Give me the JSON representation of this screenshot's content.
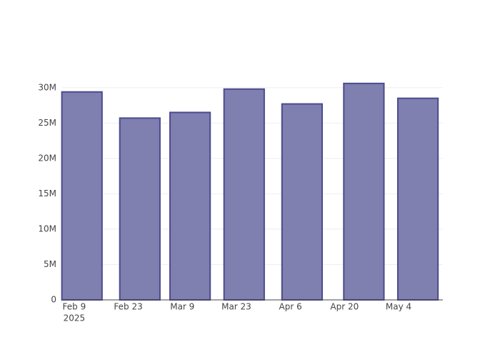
{
  "chart_data": {
    "type": "bar",
    "x": [
      "2025-02-11",
      "2025-02-26",
      "2025-03-11",
      "2025-03-25",
      "2025-04-09",
      "2025-04-25",
      "2025-05-09"
    ],
    "values": [
      29400000,
      25700000,
      26500000,
      29800000,
      27700000,
      30600000,
      28500000
    ],
    "color": "#7f7fb0",
    "edge_color": "#4b4b8f",
    "xlim": [
      "2025-02-05T21:00",
      "2025-05-15T11:00"
    ],
    "xticks": [
      {
        "value": "2025-02-09",
        "label": "Feb 9"
      },
      {
        "value": "2025-02-23",
        "label": "Feb 23"
      },
      {
        "value": "2025-03-09",
        "label": "Mar 9"
      },
      {
        "value": "2025-03-23",
        "label": "Mar 23"
      },
      {
        "value": "2025-04-06",
        "label": "Apr 6"
      },
      {
        "value": "2025-04-20",
        "label": "Apr 20"
      },
      {
        "value": "2025-05-04",
        "label": "May 4"
      }
    ],
    "x_year_label": "2025",
    "ylim": [
      0,
      32300000
    ],
    "yticks": [
      0,
      {
        "value": 5000000,
        "label": "5M"
      },
      {
        "value": 10000000,
        "label": "10M"
      },
      {
        "value": 15000000,
        "label": "15M"
      },
      {
        "value": 20000000,
        "label": "20M"
      },
      {
        "value": 25000000,
        "label": "25M"
      },
      {
        "value": 30000000,
        "label": "30M"
      }
    ],
    "grid": true
  }
}
